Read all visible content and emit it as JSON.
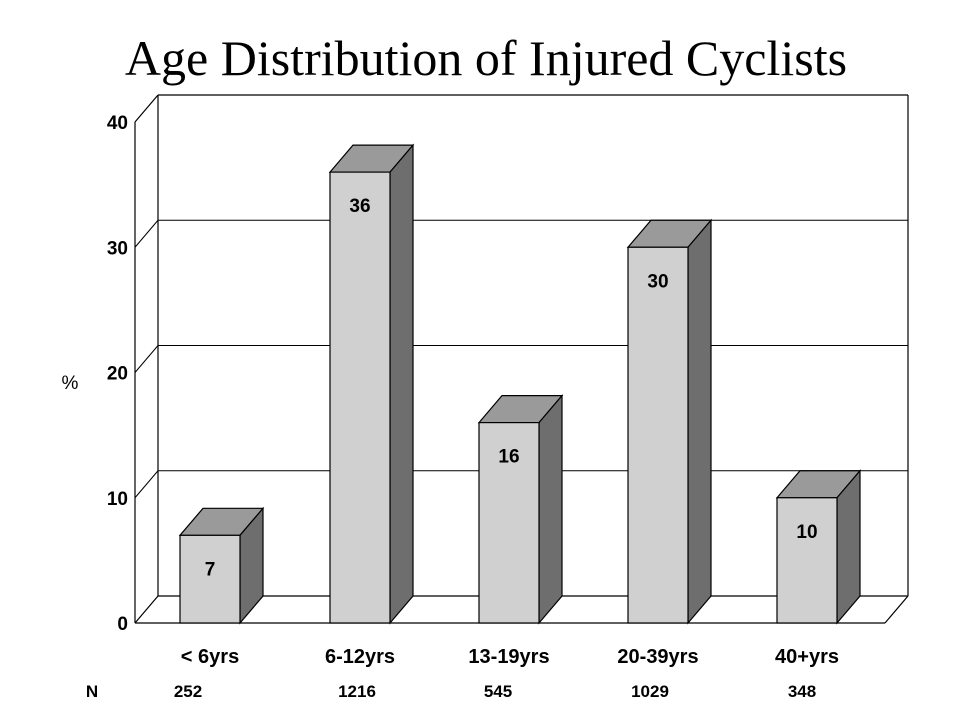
{
  "chart_data": {
    "type": "bar",
    "title": "Age Distribution of Injured Cyclists",
    "ylabel": "%",
    "xlabel": "",
    "ylim": [
      0,
      40
    ],
    "yticks": [
      "0",
      "10",
      "20",
      "30",
      "40"
    ],
    "grid": true,
    "style": "3d",
    "categories": [
      "< 6yrs",
      "6-12yrs",
      "13-19yrs",
      "20-39yrs",
      "40+yrs"
    ],
    "values": [
      7,
      36,
      16,
      30,
      10
    ],
    "data_labels": [
      "7",
      "36",
      "16",
      "30",
      "10"
    ],
    "n_label": "N",
    "n_values": [
      "252",
      "1216",
      "545",
      "1029",
      "348"
    ],
    "colors": {
      "bar_front": "#d0d0d0",
      "bar_top": "#9a9a9a",
      "bar_side": "#6e6e6e",
      "axis": "#000000",
      "background": "#ffffff"
    }
  }
}
